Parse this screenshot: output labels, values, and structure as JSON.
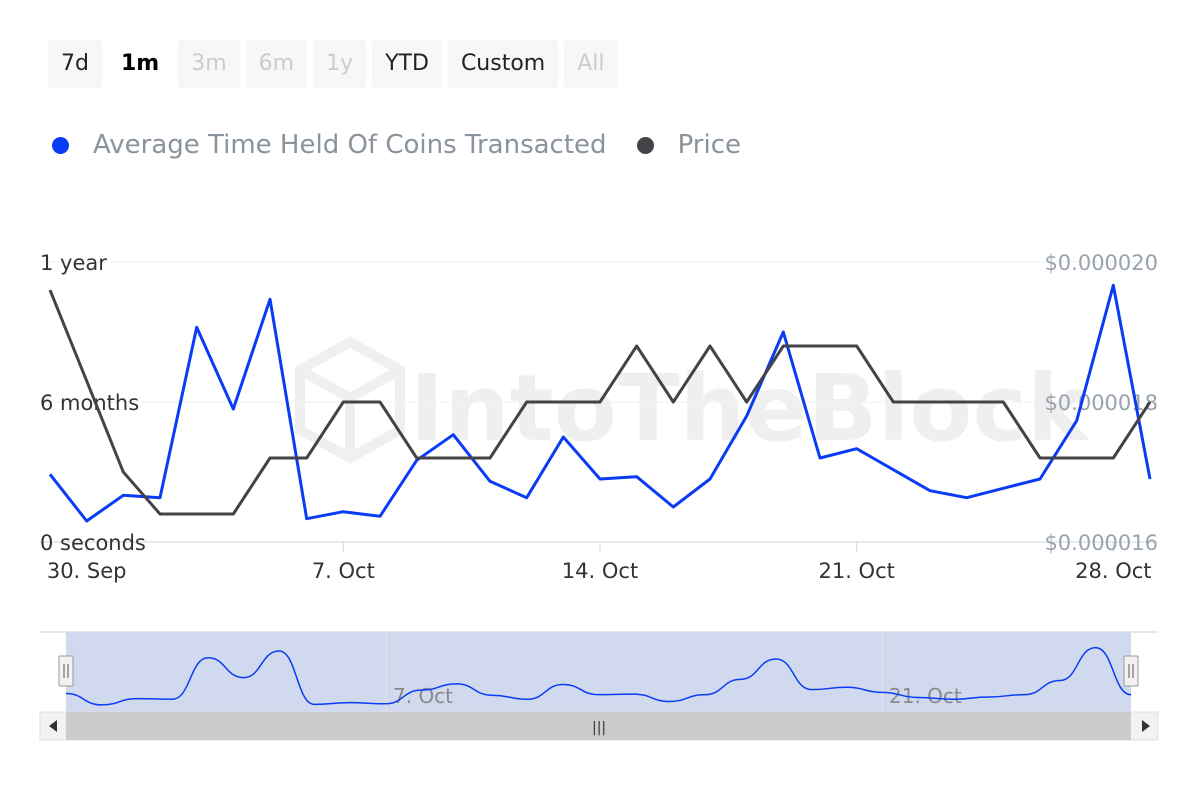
{
  "range_selector": {
    "buttons": [
      {
        "label": "7d",
        "state": "normal"
      },
      {
        "label": "1m",
        "state": "selected"
      },
      {
        "label": "3m",
        "state": "disabled"
      },
      {
        "label": "6m",
        "state": "disabled"
      },
      {
        "label": "1y",
        "state": "disabled"
      },
      {
        "label": "YTD",
        "state": "normal"
      },
      {
        "label": "Custom",
        "state": "normal"
      },
      {
        "label": "All",
        "state": "disabled"
      }
    ]
  },
  "watermark": "IntoTheBlock",
  "navigator": {
    "tick_labels": [
      "7. Oct",
      "21. Oct"
    ],
    "scrollbar_grip": "|||"
  },
  "chart_data": {
    "type": "line",
    "x_unit": "day",
    "x": [
      "2024-09-29",
      "2024-09-30",
      "2024-10-01",
      "2024-10-02",
      "2024-10-03",
      "2024-10-04",
      "2024-10-05",
      "2024-10-06",
      "2024-10-07",
      "2024-10-08",
      "2024-10-09",
      "2024-10-10",
      "2024-10-11",
      "2024-10-12",
      "2024-10-13",
      "2024-10-14",
      "2024-10-15",
      "2024-10-16",
      "2024-10-17",
      "2024-10-18",
      "2024-10-19",
      "2024-10-20",
      "2024-10-21",
      "2024-10-22",
      "2024-10-23",
      "2024-10-24",
      "2024-10-25",
      "2024-10-26",
      "2024-10-27",
      "2024-10-28",
      "2024-10-29"
    ],
    "x_ticks": [
      {
        "label": "30. Sep",
        "date": "2024-09-30"
      },
      {
        "label": "7. Oct",
        "date": "2024-10-07"
      },
      {
        "label": "14. Oct",
        "date": "2024-10-14"
      },
      {
        "label": "21. Oct",
        "date": "2024-10-21"
      },
      {
        "label": "28. Oct",
        "date": "2024-10-28"
      }
    ],
    "y_left": {
      "tick_labels": [
        "0 seconds",
        "6 months",
        "1 year"
      ],
      "ticks_months": [
        0,
        6,
        12
      ],
      "range_months": [
        0,
        12
      ]
    },
    "y_right": {
      "tick_labels": [
        "$0.000016",
        "$0.000018",
        "$0.000020"
      ],
      "ticks": [
        1.6e-05,
        1.8e-05,
        2e-05
      ],
      "range": [
        1.6e-05,
        2e-05
      ]
    },
    "series": [
      {
        "name": "Average Time Held Of Coins Transacted",
        "axis": "left",
        "unit": "months",
        "color": "#0a3cf5",
        "values": [
          2.9,
          0.9,
          2.0,
          1.9,
          9.2,
          5.7,
          10.4,
          1.0,
          1.3,
          1.1,
          3.5,
          4.6,
          2.6,
          1.9,
          4.5,
          2.7,
          2.8,
          1.5,
          2.7,
          5.4,
          9.0,
          3.6,
          4.0,
          3.1,
          2.2,
          1.9,
          2.3,
          2.7,
          5.2,
          11.0,
          2.7
        ]
      },
      {
        "name": "Price",
        "axis": "right",
        "color": "#434348",
        "values": [
          1.96e-05,
          1.83e-05,
          1.7e-05,
          1.64e-05,
          1.64e-05,
          1.64e-05,
          1.72e-05,
          1.72e-05,
          1.8e-05,
          1.8e-05,
          1.72e-05,
          1.72e-05,
          1.72e-05,
          1.8e-05,
          1.8e-05,
          1.8e-05,
          1.88e-05,
          1.8e-05,
          1.88e-05,
          1.8e-05,
          1.88e-05,
          1.88e-05,
          1.88e-05,
          1.8e-05,
          1.8e-05,
          1.8e-05,
          1.8e-05,
          1.72e-05,
          1.72e-05,
          1.72e-05,
          1.8e-05
        ]
      }
    ],
    "grid": true,
    "legend_position": "top-left"
  }
}
